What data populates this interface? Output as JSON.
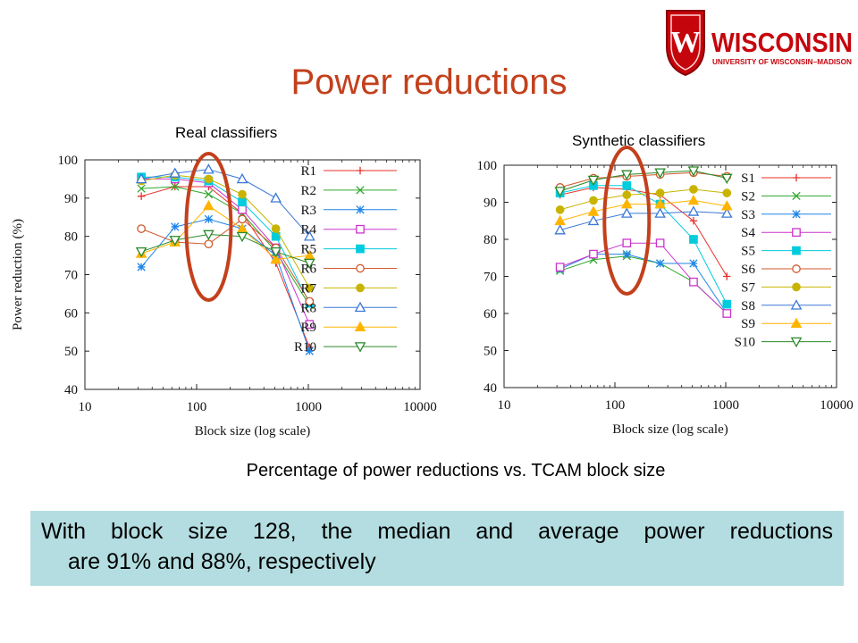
{
  "title": "Power reductions",
  "logo": {
    "text": "WISCONSIN",
    "subtext": "UNIVERSITY OF WISCONSIN–MADISON",
    "shield_letter": "W",
    "color": "#c5050c"
  },
  "caption": "Percentage of power reductions vs. TCAM block size",
  "callout": {
    "line1": "With block size 128, the median and average power reductions",
    "line2": "are 91% and 88%, respectively"
  },
  "highlight_color": "#c3401c",
  "chart_data": [
    {
      "type": "line",
      "subtitle": "Real classifiers",
      "xlabel": "Block size (log scale)",
      "ylabel": "Power reduction (%)",
      "xscale": "log",
      "xlim": [
        10,
        10000
      ],
      "ylim": [
        40,
        100
      ],
      "xticks": [
        10,
        100,
        1000,
        10000
      ],
      "xtick_labels": [
        "10",
        "100",
        "1000",
        "10000"
      ],
      "yticks": [
        40,
        50,
        60,
        70,
        80,
        90,
        100
      ],
      "legend_position": "right",
      "highlight_x": 128,
      "x": [
        32,
        64,
        128,
        256,
        512,
        1024
      ],
      "series": [
        {
          "name": "R1",
          "marker": "plus",
          "color": "#e8302a",
          "values": [
            90.5,
            93,
            93,
            86,
            73,
            51
          ]
        },
        {
          "name": "R2",
          "marker": "x",
          "color": "#2ea82e",
          "values": [
            92.5,
            93,
            91,
            86,
            76,
            62
          ]
        },
        {
          "name": "R3",
          "marker": "star",
          "color": "#1f86e8",
          "values": [
            72,
            82.5,
            84.5,
            82,
            75,
            50
          ]
        },
        {
          "name": "R4",
          "marker": "square-open",
          "color": "#cc33cc",
          "values": [
            95,
            95,
            94,
            87,
            77,
            57
          ]
        },
        {
          "name": "R5",
          "marker": "square",
          "color": "#00ccdd",
          "values": [
            95.5,
            95.5,
            94.5,
            89,
            80,
            62.5
          ]
        },
        {
          "name": "R6",
          "marker": "circle-open",
          "color": "#d05a2e",
          "values": [
            82,
            78.5,
            78,
            84.5,
            77,
            63
          ]
        },
        {
          "name": "R7",
          "marker": "circle",
          "color": "#c8b400",
          "values": [
            94.5,
            96,
            95,
            91,
            82,
            66.5
          ]
        },
        {
          "name": "R8",
          "marker": "triangle-open",
          "color": "#3a78d6",
          "values": [
            95,
            96.5,
            97.5,
            95,
            90,
            80
          ]
        },
        {
          "name": "R9",
          "marker": "triangle",
          "color": "#ffb400",
          "values": [
            75.5,
            78.5,
            88,
            82,
            74,
            75
          ]
        },
        {
          "name": "R10",
          "marker": "triangle-down-open",
          "color": "#2a8a2a",
          "values": [
            76,
            79,
            80.5,
            80,
            76,
            73
          ]
        }
      ]
    },
    {
      "type": "line",
      "subtitle": "Synthetic classifiers",
      "xlabel": "Block size (log scale)",
      "ylabel": "",
      "xscale": "log",
      "xlim": [
        10,
        10000
      ],
      "ylim": [
        40,
        100
      ],
      "xticks": [
        10,
        100,
        1000,
        10000
      ],
      "xtick_labels": [
        "10",
        "100",
        "1000",
        "10000"
      ],
      "yticks": [
        40,
        50,
        60,
        70,
        80,
        90,
        100
      ],
      "legend_position": "right",
      "highlight_x": 128,
      "x": [
        32,
        64,
        128,
        256,
        512,
        1024
      ],
      "series": [
        {
          "name": "S1",
          "marker": "plus",
          "color": "#e8302a",
          "values": [
            92,
            94,
            93.5,
            92,
            85,
            70
          ]
        },
        {
          "name": "S2",
          "marker": "x",
          "color": "#2ea82e",
          "values": [
            71.5,
            74.5,
            75.5,
            73.5,
            68.5,
            60
          ]
        },
        {
          "name": "S3",
          "marker": "star",
          "color": "#1f86e8",
          "values": [
            72,
            76,
            76,
            73.5,
            73.5,
            60
          ]
        },
        {
          "name": "S4",
          "marker": "square-open",
          "color": "#cc33cc",
          "values": [
            72.5,
            76,
            79,
            79,
            68.5,
            60
          ]
        },
        {
          "name": "S5",
          "marker": "square",
          "color": "#00ccdd",
          "values": [
            92.5,
            94.5,
            94.5,
            89.5,
            80,
            62.5
          ]
        },
        {
          "name": "S6",
          "marker": "circle-open",
          "color": "#d05a2e",
          "values": [
            94,
            96.5,
            97,
            97.5,
            98,
            97
          ]
        },
        {
          "name": "S7",
          "marker": "circle",
          "color": "#c8b400",
          "values": [
            88,
            90.5,
            92,
            92.5,
            93.5,
            92.5
          ]
        },
        {
          "name": "S8",
          "marker": "triangle-open",
          "color": "#3a78d6",
          "values": [
            82.5,
            85,
            87,
            87,
            87.5,
            87
          ]
        },
        {
          "name": "S9",
          "marker": "triangle",
          "color": "#ffb400",
          "values": [
            85,
            87.5,
            89.5,
            89.5,
            90.5,
            89
          ]
        },
        {
          "name": "S10",
          "marker": "triangle-down-open",
          "color": "#2a8a2a",
          "values": [
            93,
            96,
            97.5,
            98,
            98.5,
            96.5
          ]
        }
      ]
    }
  ]
}
